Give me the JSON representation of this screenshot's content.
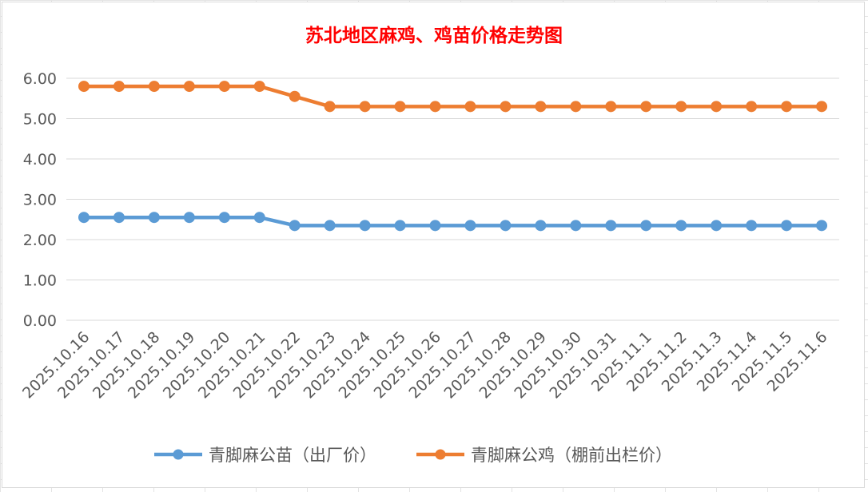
{
  "chart_data": {
    "type": "line",
    "title": "苏北地区麻鸡、鸡苗价格走势图",
    "title_color": "#ff0000",
    "categories": [
      "2025.10.16",
      "2025.10.17",
      "2025.10.18",
      "2025.10.19",
      "2025.10.20",
      "2025.10.21",
      "2025.10.22",
      "2025.10.23",
      "2025.10.24",
      "2025.10.25",
      "2025.10.26",
      "2025.10.27",
      "2025.10.28",
      "2025.10.29",
      "2025.10.30",
      "2025.10.31",
      "2025.11.1",
      "2025.11.2",
      "2025.11.3",
      "2025.11.4",
      "2025.11.5",
      "2025.11.6"
    ],
    "y_ticks": [
      "0.00",
      "1.00",
      "2.00",
      "3.00",
      "4.00",
      "5.00",
      "6.00"
    ],
    "ylim": [
      0,
      6
    ],
    "grid": true,
    "legend_position": "bottom",
    "series": [
      {
        "name": "青脚麻公苗（出厂价）",
        "color": "#5b9bd5",
        "values": [
          2.55,
          2.55,
          2.55,
          2.55,
          2.55,
          2.55,
          2.35,
          2.35,
          2.35,
          2.35,
          2.35,
          2.35,
          2.35,
          2.35,
          2.35,
          2.35,
          2.35,
          2.35,
          2.35,
          2.35,
          2.35,
          2.35
        ]
      },
      {
        "name": "青脚麻公鸡（棚前出栏价）",
        "color": "#ed7d31",
        "values": [
          5.8,
          5.8,
          5.8,
          5.8,
          5.8,
          5.8,
          5.55,
          5.3,
          5.3,
          5.3,
          5.3,
          5.3,
          5.3,
          5.3,
          5.3,
          5.3,
          5.3,
          5.3,
          5.3,
          5.3,
          5.3,
          5.3
        ]
      }
    ]
  }
}
